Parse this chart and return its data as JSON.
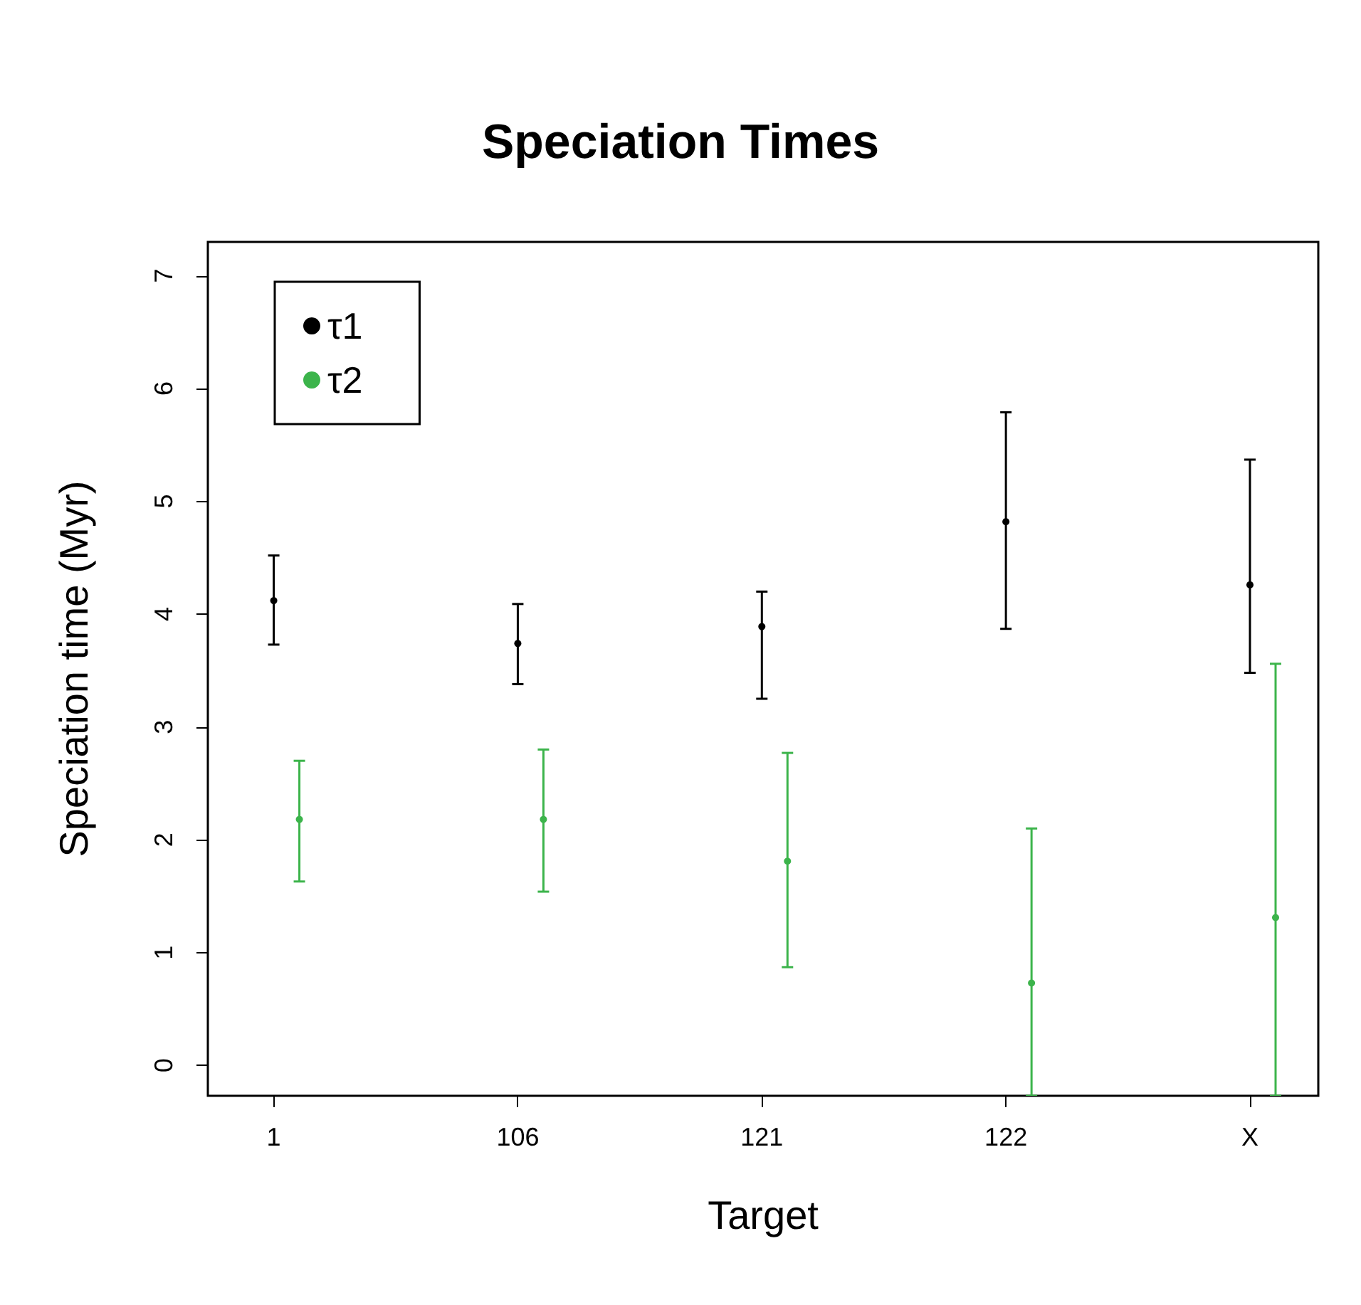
{
  "chart_data": {
    "type": "scatter",
    "title": "Speciation Times",
    "xlabel": "Target",
    "ylabel": "Speciation time (Myr)",
    "categories": [
      "1",
      "106",
      "121",
      "122",
      "X"
    ],
    "series": [
      {
        "name": "τ1",
        "color": "#000000",
        "values": [
          4.12,
          3.74,
          3.89,
          4.82,
          4.26
        ],
        "errors": [
          [
            3.73,
            4.52
          ],
          [
            3.38,
            4.09
          ],
          [
            3.25,
            4.2
          ],
          [
            3.87,
            5.79
          ],
          [
            3.48,
            5.37
          ]
        ]
      },
      {
        "name": "τ2",
        "color": "#3cb44b",
        "values": [
          2.18,
          2.18,
          1.81,
          0.73,
          1.31
        ],
        "errors": [
          [
            1.63,
            2.7
          ],
          [
            1.54,
            2.8
          ],
          [
            0.87,
            2.77
          ],
          [
            -0.27,
            2.1
          ],
          [
            -0.27,
            3.56
          ]
        ]
      }
    ],
    "ylim": [
      -0.27,
      7.3
    ],
    "yticks": [
      0,
      1,
      2,
      3,
      4,
      5,
      6,
      7
    ],
    "grid": false,
    "legend": "top left",
    "marker": "circle"
  }
}
